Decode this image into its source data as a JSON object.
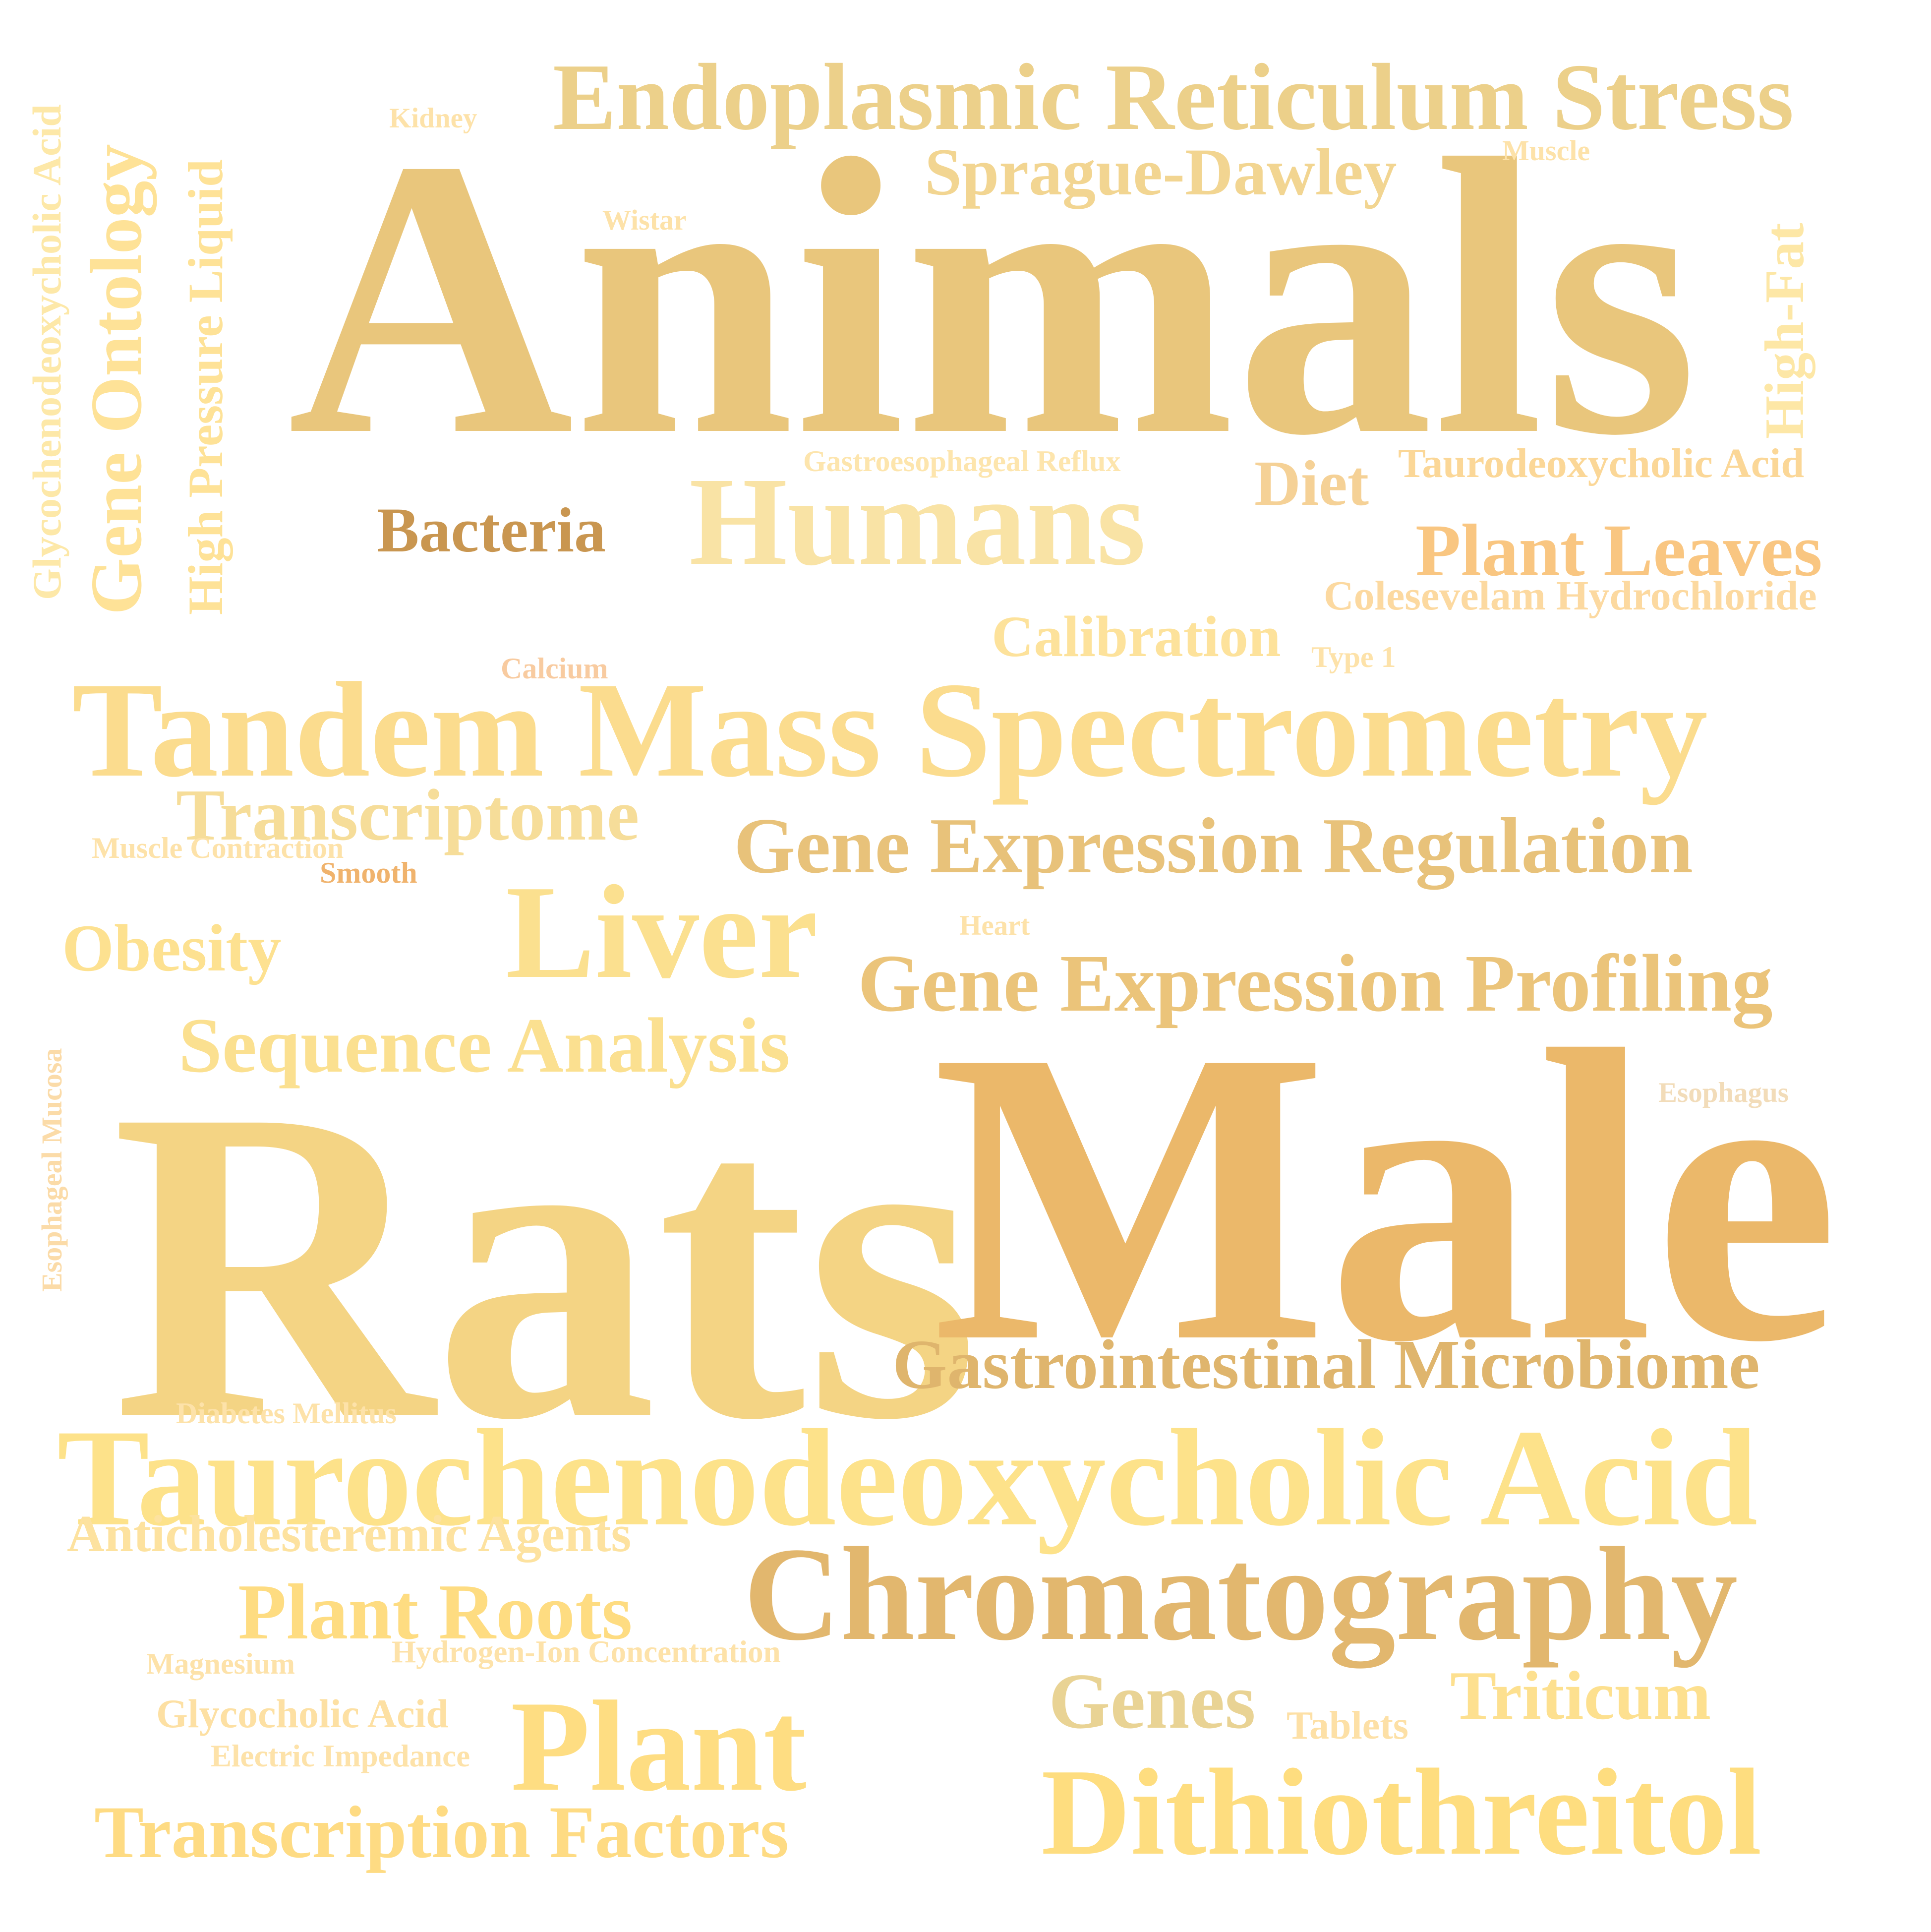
{
  "cloud": {
    "words": [
      {
        "key": "rats",
        "text": "Rats",
        "color": "#f4d484"
      },
      {
        "key": "male",
        "text": "Male",
        "color": "#ebb86a"
      },
      {
        "key": "animals",
        "text": "Animals",
        "color": "#e9c67c"
      },
      {
        "key": "tandem",
        "text": "Tandem Mass Spectrometry",
        "color": "#fbdc8e"
      },
      {
        "key": "tauro_cdca",
        "text": "Taurochenodeoxycholic Acid",
        "color": "#fde28a"
      },
      {
        "key": "chromatography",
        "text": "Chromatography",
        "color": "#e2b76e"
      },
      {
        "key": "humans",
        "text": "Humans",
        "color": "#f9e3a5"
      },
      {
        "key": "liver",
        "text": "Liver",
        "color": "#fbe08f"
      },
      {
        "key": "dithiothreitol",
        "text": "Dithiothreitol",
        "color": "#fedd7f"
      },
      {
        "key": "endoplasmic",
        "text": "Endoplasmic Reticulum Stress",
        "color": "#ecd08a"
      },
      {
        "key": "plant",
        "text": "Plant",
        "color": "#fedd82"
      },
      {
        "key": "gene_reg",
        "text": "Gene Expression Regulation",
        "color": "#e8c27a"
      },
      {
        "key": "gene_prof",
        "text": "Gene Expression Profiling",
        "color": "#ebc47a"
      },
      {
        "key": "gi_micro",
        "text": "Gastrointestinal Microbiome",
        "color": "#dfb56d"
      },
      {
        "key": "seq",
        "text": "Sequence Analysis",
        "color": "#fbe090"
      },
      {
        "key": "transcriptome",
        "text": "Transcriptome",
        "color": "#f6dd99"
      },
      {
        "key": "plant_leaves",
        "text": "Plant Leaves",
        "color": "#f9c681"
      },
      {
        "key": "sprague",
        "text": "Sprague-Dawley",
        "color": "#f2d591"
      },
      {
        "key": "obesity",
        "text": "Obesity",
        "color": "#fde190"
      },
      {
        "key": "plant_roots",
        "text": "Plant Roots",
        "color": "#fedc81"
      },
      {
        "key": "transfactors",
        "text": "Transcription Factors",
        "color": "#fedb83"
      },
      {
        "key": "genes",
        "text": "Genes",
        "color": "#e9d394"
      },
      {
        "key": "triticum",
        "text": "Triticum",
        "color": "#fde08f"
      },
      {
        "key": "bacteria",
        "text": "Bacteria",
        "color": "#c99650"
      },
      {
        "key": "diet",
        "text": "Diet",
        "color": "#f5d196"
      },
      {
        "key": "calibration",
        "text": "Calibration",
        "color": "#fde29b"
      },
      {
        "key": "anticholest",
        "text": "Anticholesteremic Agents",
        "color": "#fde29f"
      },
      {
        "key": "high_fat",
        "text": "High-Fat",
        "color": "#fde7a6"
      },
      {
        "key": "gene_ontology",
        "text": "Gene Ontology",
        "color": "#fee297"
      },
      {
        "key": "hplc",
        "text": "High Pressure Liquid",
        "color": "#fee297"
      },
      {
        "key": "glycocheno",
        "text": "Glycochenodeoxycholic Acid",
        "color": "#fde8a8"
      },
      {
        "key": "taurodeoxy",
        "text": "Taurodeoxycholic Acid",
        "color": "#fbd797"
      },
      {
        "key": "colesevelam",
        "text": "Colesevelam Hydrochloride",
        "color": "#fcd9a0"
      },
      {
        "key": "glycocholic",
        "text": "Glycocholic Acid",
        "color": "#fde0a3"
      },
      {
        "key": "hydrogen_ion",
        "text": "Hydrogen-Ion Concentration",
        "color": "#fde2a9"
      },
      {
        "key": "electric",
        "text": "Electric Impedance",
        "color": "#fde2a9"
      },
      {
        "key": "magnesium",
        "text": "Magnesium",
        "color": "#fde2a9"
      },
      {
        "key": "tablets",
        "text": "Tablets",
        "color": "#fde0a6"
      },
      {
        "key": "diabetes",
        "text": "Diabetes Mellitus",
        "color": "#fde2a9"
      },
      {
        "key": "gastro_reflux",
        "text": "Gastroesophageal Reflux",
        "color": "#fde5ad"
      },
      {
        "key": "muscle_contraction",
        "text": "Muscle Contraction",
        "color": "#fde2a9"
      },
      {
        "key": "smooth",
        "text": "Smooth",
        "color": "#f0b36d"
      },
      {
        "key": "calcium",
        "text": "Calcium",
        "color": "#f8cba0"
      },
      {
        "key": "type1",
        "text": "Type 1",
        "color": "#fde2a9"
      },
      {
        "key": "kidney",
        "text": "Kidney",
        "color": "#fde2a9"
      },
      {
        "key": "wistar",
        "text": "Wistar",
        "color": "#fde2a9"
      },
      {
        "key": "muscle",
        "text": "Muscle",
        "color": "#fde2a9"
      },
      {
        "key": "heart",
        "text": "Heart",
        "color": "#fde2a9"
      },
      {
        "key": "esophagus",
        "text": "Esophagus",
        "color": "#f2dcb9"
      },
      {
        "key": "esophageal_mucosa",
        "text": "Esophageal Mucosa",
        "color": "#fbdba8"
      }
    ]
  }
}
